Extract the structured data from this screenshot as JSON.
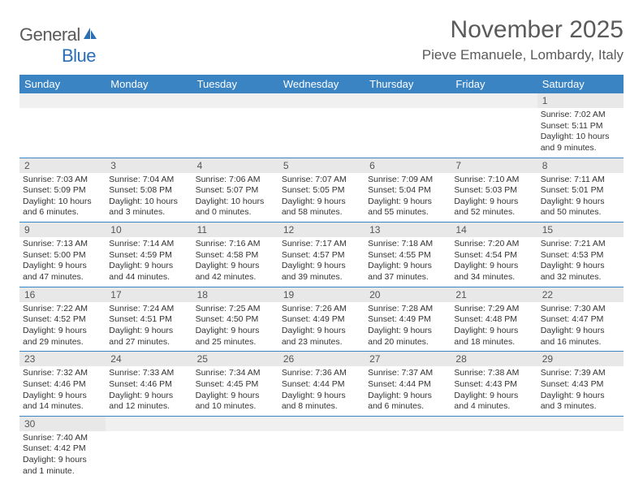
{
  "logo": {
    "text1": "General",
    "text2": "Blue"
  },
  "header": {
    "month_title": "November 2025",
    "location": "Pieve Emanuele, Lombardy, Italy"
  },
  "colors": {
    "header_bg": "#3b84c4",
    "header_text": "#ffffff",
    "daynum_bg": "#e8e8e8",
    "border": "#3b84c4",
    "text": "#333333",
    "title": "#5a5a5a"
  },
  "day_names": [
    "Sunday",
    "Monday",
    "Tuesday",
    "Wednesday",
    "Thursday",
    "Friday",
    "Saturday"
  ],
  "weeks": [
    {
      "nums": [
        "",
        "",
        "",
        "",
        "",
        "",
        "1"
      ],
      "cells": [
        null,
        null,
        null,
        null,
        null,
        null,
        {
          "sunrise": "Sunrise: 7:02 AM",
          "sunset": "Sunset: 5:11 PM",
          "daylight": "Daylight: 10 hours and 9 minutes."
        }
      ]
    },
    {
      "nums": [
        "2",
        "3",
        "4",
        "5",
        "6",
        "7",
        "8"
      ],
      "cells": [
        {
          "sunrise": "Sunrise: 7:03 AM",
          "sunset": "Sunset: 5:09 PM",
          "daylight": "Daylight: 10 hours and 6 minutes."
        },
        {
          "sunrise": "Sunrise: 7:04 AM",
          "sunset": "Sunset: 5:08 PM",
          "daylight": "Daylight: 10 hours and 3 minutes."
        },
        {
          "sunrise": "Sunrise: 7:06 AM",
          "sunset": "Sunset: 5:07 PM",
          "daylight": "Daylight: 10 hours and 0 minutes."
        },
        {
          "sunrise": "Sunrise: 7:07 AM",
          "sunset": "Sunset: 5:05 PM",
          "daylight": "Daylight: 9 hours and 58 minutes."
        },
        {
          "sunrise": "Sunrise: 7:09 AM",
          "sunset": "Sunset: 5:04 PM",
          "daylight": "Daylight: 9 hours and 55 minutes."
        },
        {
          "sunrise": "Sunrise: 7:10 AM",
          "sunset": "Sunset: 5:03 PM",
          "daylight": "Daylight: 9 hours and 52 minutes."
        },
        {
          "sunrise": "Sunrise: 7:11 AM",
          "sunset": "Sunset: 5:01 PM",
          "daylight": "Daylight: 9 hours and 50 minutes."
        }
      ]
    },
    {
      "nums": [
        "9",
        "10",
        "11",
        "12",
        "13",
        "14",
        "15"
      ],
      "cells": [
        {
          "sunrise": "Sunrise: 7:13 AM",
          "sunset": "Sunset: 5:00 PM",
          "daylight": "Daylight: 9 hours and 47 minutes."
        },
        {
          "sunrise": "Sunrise: 7:14 AM",
          "sunset": "Sunset: 4:59 PM",
          "daylight": "Daylight: 9 hours and 44 minutes."
        },
        {
          "sunrise": "Sunrise: 7:16 AM",
          "sunset": "Sunset: 4:58 PM",
          "daylight": "Daylight: 9 hours and 42 minutes."
        },
        {
          "sunrise": "Sunrise: 7:17 AM",
          "sunset": "Sunset: 4:57 PM",
          "daylight": "Daylight: 9 hours and 39 minutes."
        },
        {
          "sunrise": "Sunrise: 7:18 AM",
          "sunset": "Sunset: 4:55 PM",
          "daylight": "Daylight: 9 hours and 37 minutes."
        },
        {
          "sunrise": "Sunrise: 7:20 AM",
          "sunset": "Sunset: 4:54 PM",
          "daylight": "Daylight: 9 hours and 34 minutes."
        },
        {
          "sunrise": "Sunrise: 7:21 AM",
          "sunset": "Sunset: 4:53 PM",
          "daylight": "Daylight: 9 hours and 32 minutes."
        }
      ]
    },
    {
      "nums": [
        "16",
        "17",
        "18",
        "19",
        "20",
        "21",
        "22"
      ],
      "cells": [
        {
          "sunrise": "Sunrise: 7:22 AM",
          "sunset": "Sunset: 4:52 PM",
          "daylight": "Daylight: 9 hours and 29 minutes."
        },
        {
          "sunrise": "Sunrise: 7:24 AM",
          "sunset": "Sunset: 4:51 PM",
          "daylight": "Daylight: 9 hours and 27 minutes."
        },
        {
          "sunrise": "Sunrise: 7:25 AM",
          "sunset": "Sunset: 4:50 PM",
          "daylight": "Daylight: 9 hours and 25 minutes."
        },
        {
          "sunrise": "Sunrise: 7:26 AM",
          "sunset": "Sunset: 4:49 PM",
          "daylight": "Daylight: 9 hours and 23 minutes."
        },
        {
          "sunrise": "Sunrise: 7:28 AM",
          "sunset": "Sunset: 4:49 PM",
          "daylight": "Daylight: 9 hours and 20 minutes."
        },
        {
          "sunrise": "Sunrise: 7:29 AM",
          "sunset": "Sunset: 4:48 PM",
          "daylight": "Daylight: 9 hours and 18 minutes."
        },
        {
          "sunrise": "Sunrise: 7:30 AM",
          "sunset": "Sunset: 4:47 PM",
          "daylight": "Daylight: 9 hours and 16 minutes."
        }
      ]
    },
    {
      "nums": [
        "23",
        "24",
        "25",
        "26",
        "27",
        "28",
        "29"
      ],
      "cells": [
        {
          "sunrise": "Sunrise: 7:32 AM",
          "sunset": "Sunset: 4:46 PM",
          "daylight": "Daylight: 9 hours and 14 minutes."
        },
        {
          "sunrise": "Sunrise: 7:33 AM",
          "sunset": "Sunset: 4:46 PM",
          "daylight": "Daylight: 9 hours and 12 minutes."
        },
        {
          "sunrise": "Sunrise: 7:34 AM",
          "sunset": "Sunset: 4:45 PM",
          "daylight": "Daylight: 9 hours and 10 minutes."
        },
        {
          "sunrise": "Sunrise: 7:36 AM",
          "sunset": "Sunset: 4:44 PM",
          "daylight": "Daylight: 9 hours and 8 minutes."
        },
        {
          "sunrise": "Sunrise: 7:37 AM",
          "sunset": "Sunset: 4:44 PM",
          "daylight": "Daylight: 9 hours and 6 minutes."
        },
        {
          "sunrise": "Sunrise: 7:38 AM",
          "sunset": "Sunset: 4:43 PM",
          "daylight": "Daylight: 9 hours and 4 minutes."
        },
        {
          "sunrise": "Sunrise: 7:39 AM",
          "sunset": "Sunset: 4:43 PM",
          "daylight": "Daylight: 9 hours and 3 minutes."
        }
      ]
    },
    {
      "nums": [
        "30",
        "",
        "",
        "",
        "",
        "",
        ""
      ],
      "cells": [
        {
          "sunrise": "Sunrise: 7:40 AM",
          "sunset": "Sunset: 4:42 PM",
          "daylight": "Daylight: 9 hours and 1 minute."
        },
        null,
        null,
        null,
        null,
        null,
        null
      ]
    }
  ]
}
